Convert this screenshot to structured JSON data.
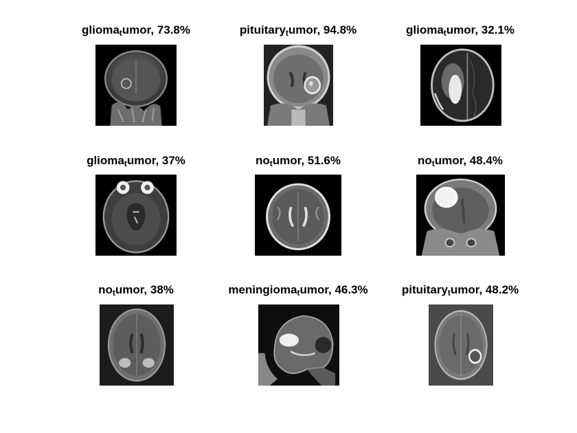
{
  "panels": [
    {
      "class_a": "glioma",
      "class_sub": "t",
      "class_b": "umor",
      "score": ", 73.8%",
      "view": "coronal"
    },
    {
      "class_a": "pituitary",
      "class_sub": "t",
      "class_b": "umor",
      "score": ", 94.8%",
      "view": "coronal-lesion"
    },
    {
      "class_a": "glioma",
      "class_sub": "t",
      "class_b": "umor",
      "score": ", 32.1%",
      "view": "axial-bright"
    },
    {
      "class_a": "glioma",
      "class_sub": "t",
      "class_b": "umor",
      "score": ", 37%",
      "view": "axial-eyes"
    },
    {
      "class_a": "no",
      "class_sub": "t",
      "class_b": "umor",
      "score": ", 51.6%",
      "view": "axial"
    },
    {
      "class_a": "no",
      "class_sub": "t",
      "class_b": "umor",
      "score": ", 48.4%",
      "view": "coronal-bright"
    },
    {
      "class_a": "no",
      "class_sub": "t",
      "class_b": "umor",
      "score": ", 38%",
      "view": "axial-flair"
    },
    {
      "class_a": "meningioma",
      "class_sub": "t",
      "class_b": "umor",
      "score": ", 46.3%",
      "view": "sagittal"
    },
    {
      "class_a": "pituitary",
      "class_sub": "t",
      "class_b": "umor",
      "score": ", 48.2%",
      "view": "axial-ring"
    }
  ]
}
